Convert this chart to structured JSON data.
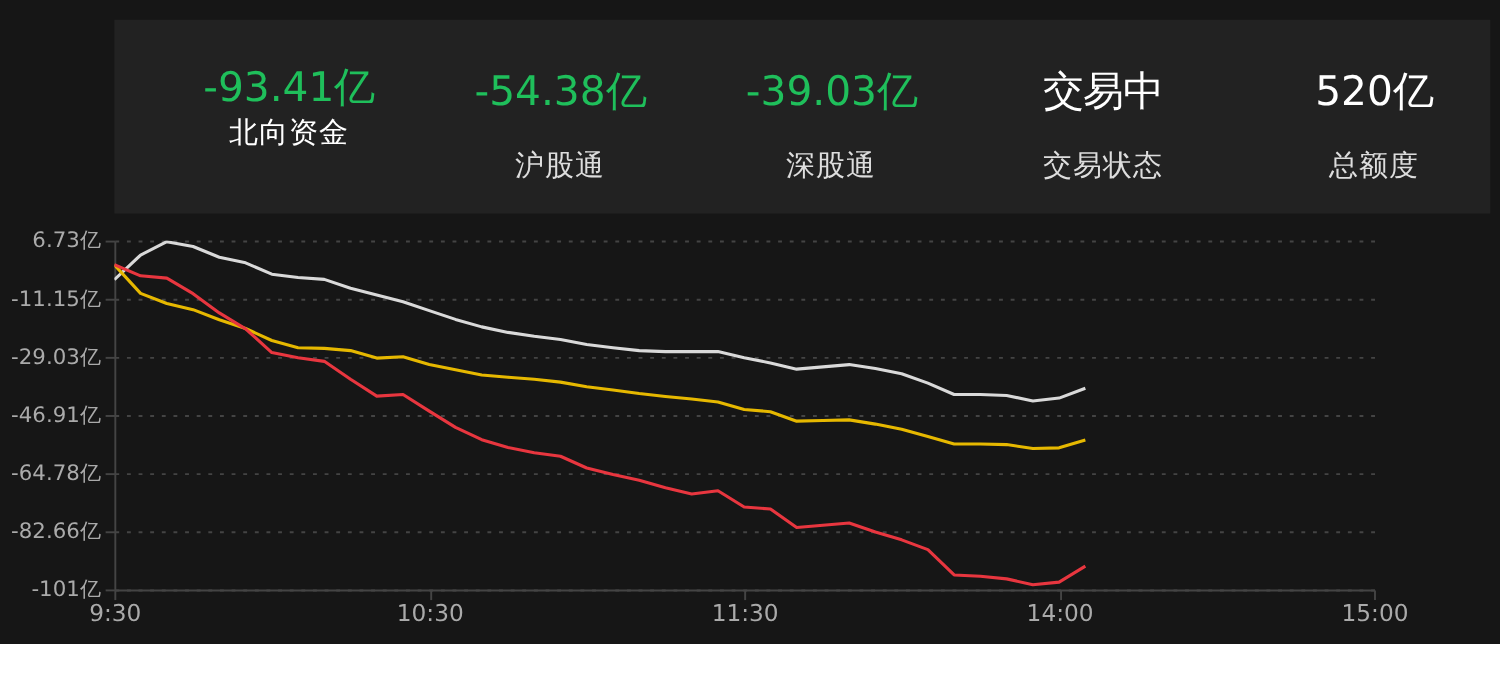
{
  "chart_data": [
    {
      "type": "other",
      "annotations": [
        "-93.41亿",
        "北向资金",
        "-54.38亿",
        "沪股通",
        "-39.03亿",
        "深股通",
        "交易中",
        "交易状态",
        "520亿",
        "总额度"
      ],
      "colors": [
        "#1fbf5b",
        "#1fbf5b",
        "#1fbf5b",
        "#ffffff",
        "#ffffff"
      ]
    },
    {
      "type": "line",
      "grid": "y",
      "line_style": "solid",
      "marker": "none",
      "categories": [
        "9:30",
        null,
        null,
        null,
        null,
        null,
        null,
        null,
        null,
        null,
        null,
        null,
        "10:30",
        null,
        null,
        null,
        null,
        null,
        null,
        null,
        null,
        null,
        null,
        null,
        "11:30",
        null,
        null,
        null,
        null,
        null,
        null,
        null,
        null,
        null,
        null,
        null,
        "14:00",
        null,
        null,
        null,
        null,
        null,
        null,
        null,
        null,
        null,
        null,
        null,
        "15:00"
      ],
      "ylim": [
        -100.55,
        6.73
      ],
      "yticks": [
        {
          "value": 6.73,
          "label": "6.73亿"
        },
        {
          "value": -11.15,
          "label": "-11.15亿"
        },
        {
          "value": -29.03,
          "label": "-29.03亿"
        },
        {
          "value": -46.91,
          "label": "-46.91亿"
        },
        {
          "value": -64.78,
          "label": "-64.78亿"
        },
        {
          "value": -82.66,
          "label": "-82.66亿"
        },
        {
          "value": -100.55,
          "label": "-101亿"
        }
      ],
      "series": [
        {
          "color": "#d9d9d9",
          "values": [
            -5.3,
            2.3,
            6.4,
            4.9,
            1.6,
            -0.1,
            -3.6,
            -4.6,
            -5.2,
            -7.9,
            -10.0,
            -12.1,
            -14.8,
            -17.5,
            -19.8,
            -21.5,
            -22.7,
            -23.7,
            -25.2,
            -26.2,
            -27.1,
            -27.4,
            -27.4,
            -27.4,
            -29.3,
            -30.9,
            -32.8,
            -32.1,
            -31.4,
            -32.6,
            -34.2,
            -37.1,
            -40.6,
            -40.6,
            -40.9,
            -42.6,
            -41.7,
            -38.7,
            null,
            null,
            null,
            null,
            null,
            null,
            null,
            null,
            null,
            null,
            null
          ]
        },
        {
          "color": "#e6b800",
          "values": [
            -0.7,
            -9.5,
            -12.6,
            -14.5,
            -17.6,
            -20.3,
            -24.0,
            -26.2,
            -26.4,
            -27.1,
            -29.4,
            -29.0,
            -31.4,
            -33.0,
            -34.6,
            -35.3,
            -35.9,
            -36.8,
            -38.2,
            -39.2,
            -40.3,
            -41.2,
            -42.0,
            -42.9,
            -45.2,
            -45.9,
            -48.8,
            -48.6,
            -48.4,
            -49.7,
            -51.3,
            -53.5,
            -55.8,
            -55.8,
            -56.0,
            -57.2,
            -57.0,
            -54.6,
            null,
            null,
            null,
            null,
            null,
            null,
            null,
            null,
            null,
            null,
            null
          ]
        },
        {
          "color": "#e8363f",
          "values": [
            -0.7,
            -4.1,
            -4.8,
            -9.6,
            -15.5,
            -20.4,
            -27.7,
            -29.3,
            -30.4,
            -35.9,
            -41.1,
            -40.6,
            -45.7,
            -50.7,
            -54.5,
            -56.9,
            -58.5,
            -59.6,
            -63.2,
            -65.2,
            -67.0,
            -69.3,
            -71.2,
            -70.2,
            -75.2,
            -75.8,
            -81.5,
            -80.8,
            -80.1,
            -82.9,
            -85.3,
            -88.3,
            -96.1,
            -96.5,
            -97.3,
            -99.1,
            -98.3,
            -93.4,
            null,
            null,
            null,
            null,
            null,
            null,
            null,
            null,
            null,
            null,
            null
          ]
        }
      ]
    }
  ]
}
